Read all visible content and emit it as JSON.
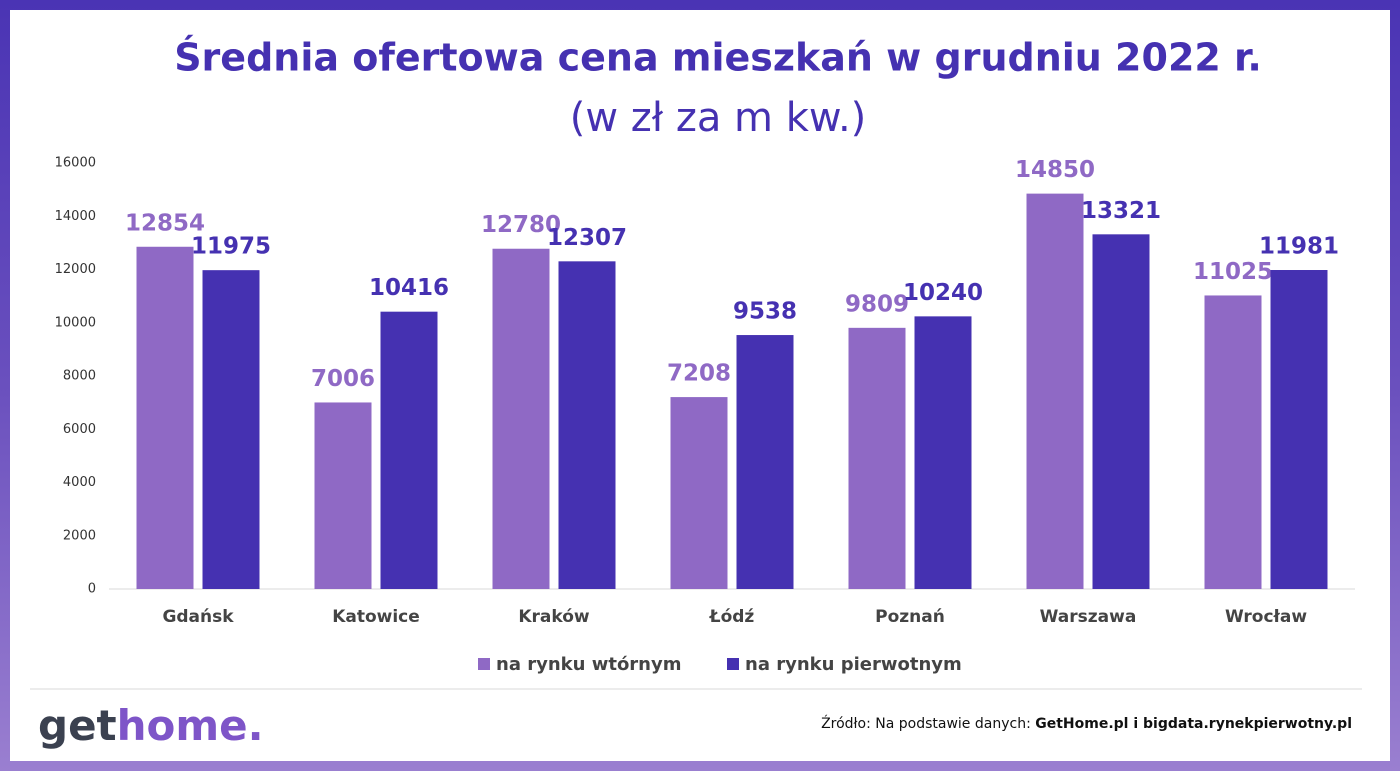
{
  "chart_data": {
    "type": "bar",
    "title": "Średnia ofertowa cena mieszkań w grudniu 2022 r.",
    "subtitle": "(w zł za m kw.)",
    "categories": [
      "Gdańsk",
      "Katowice",
      "Kraków",
      "Łódź",
      "Poznań",
      "Warszawa",
      "Wrocław"
    ],
    "series": [
      {
        "name": "na rynku wtórnym",
        "color": "#8f69c5",
        "values": [
          12854,
          7006,
          12780,
          7208,
          9809,
          14850,
          11025
        ]
      },
      {
        "name": "na rynku pierwotnym",
        "color": "#4531b1",
        "values": [
          11975,
          10416,
          12307,
          9538,
          10240,
          13321,
          11981
        ]
      }
    ],
    "ylim": [
      0,
      16000
    ],
    "yticks": [
      0,
      2000,
      4000,
      6000,
      8000,
      10000,
      12000,
      14000,
      16000
    ],
    "grid": false,
    "legend": "bottom"
  },
  "footer": {
    "logo": {
      "dark": "get",
      "accent": "home."
    },
    "source": {
      "label": "Źródło: Na podstawie danych: ",
      "value": "GetHome.pl i bigdata.rynekpierwotny.pl"
    }
  }
}
